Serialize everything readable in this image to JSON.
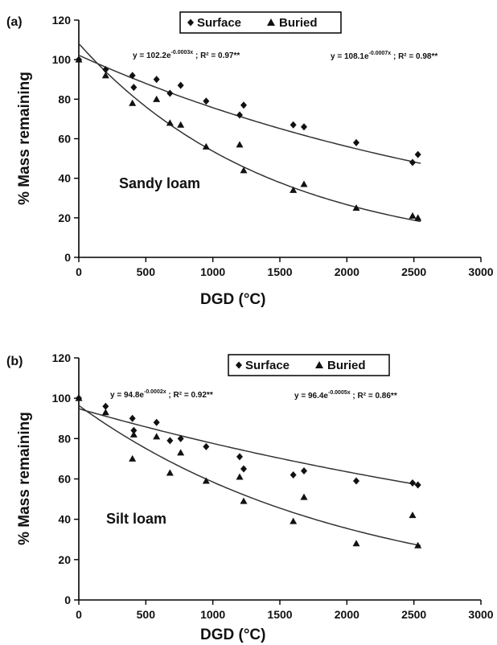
{
  "chart_data": [
    {
      "panel_label": "(a)",
      "type": "scatter",
      "xlabel": "DGD (°C)",
      "ylabel": "% Mass remaining",
      "xlim": [
        0,
        3000
      ],
      "ylim": [
        0,
        120
      ],
      "xticks": [
        0,
        500,
        1000,
        1500,
        2000,
        2500,
        3000
      ],
      "yticks": [
        0,
        20,
        40,
        60,
        80,
        100,
        120
      ],
      "annotation": "Sandy loam",
      "legend": {
        "position": "top-center",
        "entries": [
          "Surface",
          "Buried"
        ]
      },
      "grid": false,
      "series": [
        {
          "name": "Surface",
          "marker": "diamond",
          "x": [
            0,
            200,
            400,
            410,
            580,
            680,
            760,
            950,
            1200,
            1230,
            1600,
            1680,
            2070,
            2490,
            2530
          ],
          "y": [
            100,
            95,
            92,
            86,
            90,
            83,
            87,
            79,
            72,
            77,
            67,
            66,
            58,
            48,
            52
          ],
          "fit": {
            "a": 102.2,
            "b": -0.0003
          },
          "equation": {
            "prefix": "y = 102.2e",
            "exponent": "-0.0003x",
            "suffix": " ; R² = 0.97**"
          }
        },
        {
          "name": "Buried",
          "marker": "triangle",
          "x": [
            0,
            200,
            400,
            580,
            680,
            760,
            950,
            1200,
            1230,
            1600,
            1680,
            2070,
            2490,
            2530
          ],
          "y": [
            100,
            92,
            78,
            80,
            68,
            67,
            56,
            57,
            44,
            34,
            37,
            25,
            21,
            20
          ],
          "fit": {
            "a": 108.1,
            "b": -0.0007
          },
          "equation": {
            "prefix": "y = 108.1e",
            "exponent": "-0.0007x",
            "suffix": " ; R² = 0.98**"
          }
        }
      ]
    },
    {
      "panel_label": "(b)",
      "type": "scatter",
      "xlabel": "DGD (°C)",
      "ylabel": "% Mass remaining",
      "xlim": [
        0,
        3000
      ],
      "ylim": [
        0,
        120
      ],
      "xticks": [
        0,
        500,
        1000,
        1500,
        2000,
        2500,
        3000
      ],
      "yticks": [
        0,
        20,
        40,
        60,
        80,
        100,
        120
      ],
      "annotation": "Silt loam",
      "legend": {
        "position": "top-center",
        "entries": [
          "Surface",
          "Buried"
        ]
      },
      "grid": false,
      "series": [
        {
          "name": "Surface",
          "marker": "diamond",
          "x": [
            0,
            200,
            400,
            410,
            580,
            680,
            760,
            950,
            1200,
            1230,
            1600,
            1680,
            2070,
            2490,
            2530
          ],
          "y": [
            100,
            96,
            90,
            84,
            88,
            79,
            80,
            76,
            71,
            65,
            62,
            64,
            59,
            58,
            57
          ],
          "fit": {
            "a": 94.8,
            "b": -0.0002
          },
          "equation": {
            "prefix": "y = 94.8e",
            "exponent": "-0.0002x",
            "suffix": " ; R² = 0.92**"
          }
        },
        {
          "name": "Buried",
          "marker": "triangle",
          "x": [
            0,
            200,
            400,
            410,
            580,
            680,
            760,
            950,
            1200,
            1230,
            1600,
            1680,
            2070,
            2490,
            2530
          ],
          "y": [
            100,
            93,
            70,
            82,
            81,
            63,
            73,
            59,
            61,
            49,
            39,
            51,
            28,
            42,
            27
          ],
          "fit": {
            "a": 96.4,
            "b": -0.0005
          },
          "equation": {
            "prefix": "y = 96.4e",
            "exponent": "-0.0005x",
            "suffix": " ; R² = 0.86**"
          }
        }
      ]
    }
  ]
}
